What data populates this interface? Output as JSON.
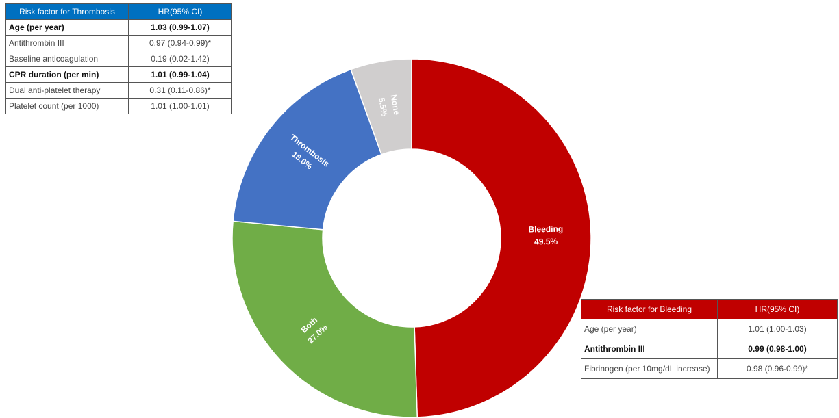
{
  "chart_data": {
    "type": "donut",
    "categories": [
      "Bleeding",
      "Both",
      "Thrombosis",
      "None"
    ],
    "values": [
      49.5,
      27.0,
      18.0,
      5.5
    ],
    "value_labels": [
      "49.5%",
      "27.0%",
      "18.0%",
      "5.5%"
    ],
    "colors": [
      "#c00000",
      "#70ad47",
      "#4472c4",
      "#d0cece"
    ]
  },
  "tables": [
    {
      "header": [
        "Risk factor for Thrombosis",
        "HR(95% CI)"
      ],
      "rows": [
        [
          "Age (per year)",
          "1.03 (0.99-1.07)"
        ],
        [
          "Antithrombin III",
          "0.97 (0.94-0.99)*"
        ],
        [
          "Baseline anticoagulation",
          "0.19 (0.02-1.42)"
        ],
        [
          "CPR duration (per min)",
          "1.01 (0.99-1.04)"
        ],
        [
          "Dual anti-platelet therapy",
          "0.31 (0.11-0.86)*"
        ],
        [
          "Platelet count (per 1000)",
          "1.01 (1.00-1.01)"
        ]
      ]
    },
    {
      "header": [
        "Risk factor for Bleeding",
        "HR(95% CI)"
      ],
      "rows": [
        [
          "Age (per year)",
          "1.01 (1.00-1.03)"
        ],
        [
          "Antithrombin III",
          "0.99 (0.98-1.00)"
        ],
        [
          "Fibrinogen (per 10mg/dL increase)",
          "0.98 (0.96-0.99)*"
        ]
      ]
    }
  ]
}
